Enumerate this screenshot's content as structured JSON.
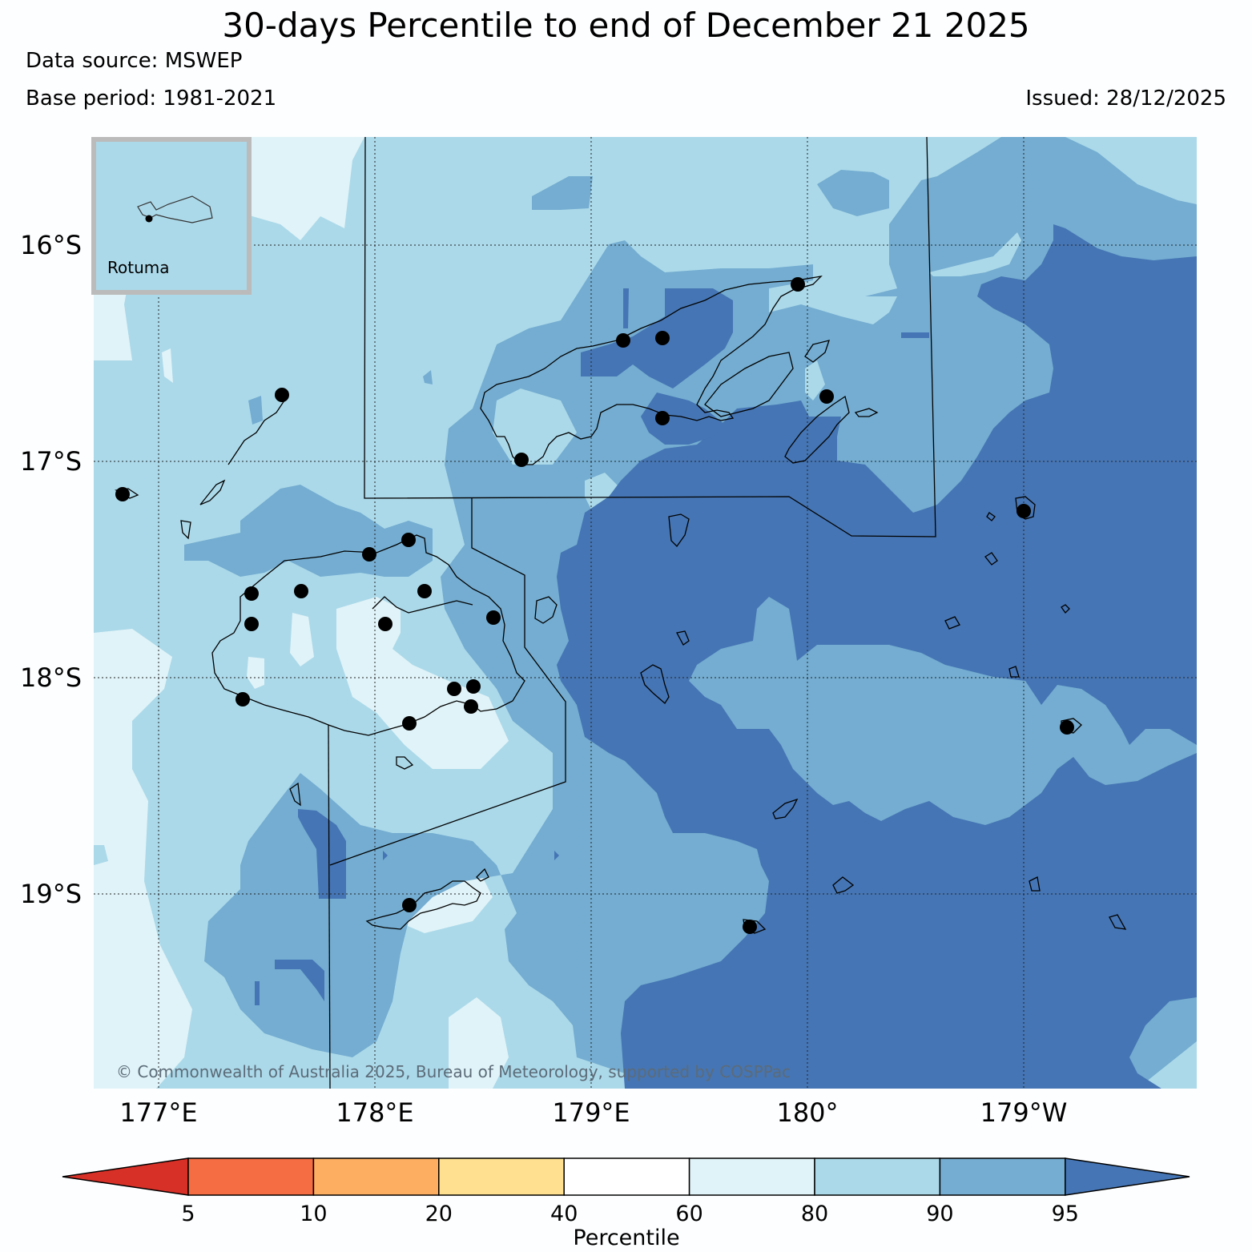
{
  "title": "30-days Percentile to end of December 21 2025",
  "data_source": "Data source: MSWEP",
  "base_period": "Base period: 1981-2021",
  "issued": "Issued: 28/12/2025",
  "inset_label": "Rotuma",
  "copyright": "© Commonwealth of Australia 2025, Bureau of Meteorology, supported by COSPPac",
  "lat_labels": [
    "16°S",
    "17°S",
    "18°S",
    "19°S"
  ],
  "lon_labels": [
    "177°E",
    "178°E",
    "179°E",
    "180°",
    "179°W"
  ],
  "colorbar": {
    "label": "Percentile",
    "ticks": [
      "5",
      "10",
      "20",
      "40",
      "60",
      "80",
      "90",
      "95"
    ],
    "colors": [
      "#d73027",
      "#f46d43",
      "#fdae61",
      "#fee090",
      "#ffffff",
      "#e0f3f8",
      "#abd9e9",
      "#74add1",
      "#4575b4"
    ]
  },
  "colors": {
    "p60_80": "#e0f3f8",
    "p80_90": "#abd9e9",
    "p90_95": "#74add1",
    "p95_plus": "#4575b4"
  }
}
